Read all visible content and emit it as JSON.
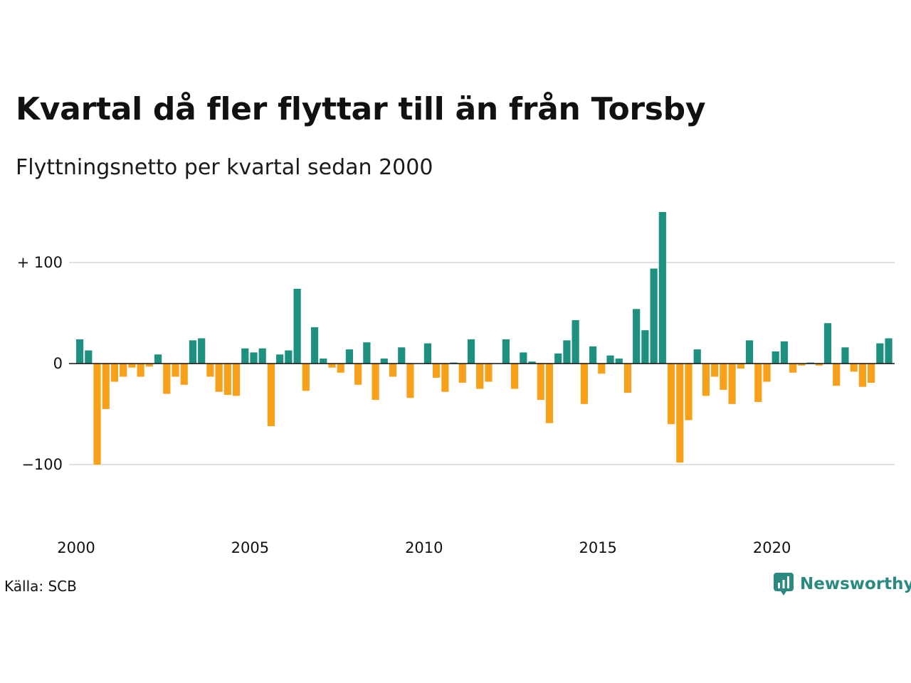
{
  "title": "Kvartal då fler flyttar till än från Torsby",
  "subtitle": "Flyttningsnetto per kvartal sedan 2000",
  "source": "Källa: SCB",
  "brand": {
    "name": "Newsworthy",
    "icon": "newsworthy-logo-icon"
  },
  "colors": {
    "positive": "#1e9080",
    "negative": "#f7a11a",
    "grid": "#e0e0e0",
    "zero_line": "#111111"
  },
  "chart_data": {
    "type": "bar",
    "x_start_year": 2000,
    "periods_per_year": 4,
    "ylim": [
      -150,
      150
    ],
    "yticks": [
      {
        "value": 100,
        "label": "+ 100"
      },
      {
        "value": 0,
        "label": "0"
      },
      {
        "value": -100,
        "label": "−100"
      }
    ],
    "xticks": [
      {
        "value": 2000,
        "label": "2000"
      },
      {
        "value": 2005,
        "label": "2005"
      },
      {
        "value": 2010,
        "label": "2010"
      },
      {
        "value": 2015,
        "label": "2015"
      },
      {
        "value": 2020,
        "label": "2020"
      }
    ],
    "grid": true,
    "values": [
      24,
      13,
      -100,
      -45,
      -18,
      -13,
      -4,
      -13,
      -3,
      9,
      -30,
      -13,
      -21,
      23,
      25,
      -13,
      -28,
      -31,
      -32,
      15,
      11,
      15,
      -62,
      9,
      13,
      74,
      -27,
      36,
      5,
      -4,
      -9,
      14,
      -21,
      21,
      -36,
      5,
      -13,
      16,
      -34,
      0,
      20,
      -14,
      -28,
      1,
      -19,
      24,
      -25,
      -18,
      0,
      24,
      -25,
      11,
      2,
      -36,
      -59,
      10,
      23,
      43,
      -40,
      17,
      -10,
      8,
      5,
      -29,
      54,
      33,
      94,
      150,
      -60,
      -98,
      -56,
      14,
      -32,
      -13,
      -26,
      -40,
      -5,
      23,
      -38,
      -18,
      12,
      22,
      -9,
      -2,
      1,
      -2,
      40,
      -22,
      16,
      -8,
      -23,
      -19,
      20,
      25
    ]
  }
}
